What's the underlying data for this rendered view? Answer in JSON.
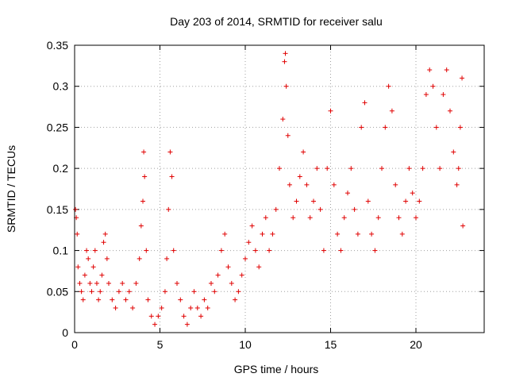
{
  "chart_data": {
    "type": "scatter",
    "title": "Day 203 of 2014, SRMTID for receiver salu",
    "xlabel": "GPS time / hours",
    "ylabel": "SRMTID / TECUs",
    "xlim": [
      0,
      24
    ],
    "ylim": [
      0,
      0.35
    ],
    "x_ticks": [
      0,
      5,
      10,
      15,
      20
    ],
    "x_tick_labels": [
      "0",
      "5",
      "10",
      "15",
      "20"
    ],
    "y_ticks": [
      0,
      0.05,
      0.1,
      0.15,
      0.2,
      0.25,
      0.3,
      0.35
    ],
    "y_tick_labels": [
      "0",
      "0.05",
      "0.1",
      "0.15",
      "0.2",
      "0.25",
      "0.3",
      "0.35"
    ],
    "grid": true,
    "marker": "+",
    "marker_color": "#e00000",
    "series": [
      {
        "name": "SRMTID",
        "points": [
          [
            0.05,
            0.15
          ],
          [
            0.1,
            0.14
          ],
          [
            0.15,
            0.12
          ],
          [
            0.2,
            0.08
          ],
          [
            0.3,
            0.06
          ],
          [
            0.4,
            0.05
          ],
          [
            0.5,
            0.04
          ],
          [
            0.6,
            0.07
          ],
          [
            0.7,
            0.1
          ],
          [
            0.8,
            0.09
          ],
          [
            0.9,
            0.06
          ],
          [
            1.0,
            0.05
          ],
          [
            1.1,
            0.08
          ],
          [
            1.2,
            0.1
          ],
          [
            1.3,
            0.06
          ],
          [
            1.4,
            0.04
          ],
          [
            1.5,
            0.05
          ],
          [
            1.6,
            0.07
          ],
          [
            1.7,
            0.11
          ],
          [
            1.8,
            0.12
          ],
          [
            1.9,
            0.09
          ],
          [
            2.0,
            0.06
          ],
          [
            2.2,
            0.04
          ],
          [
            2.4,
            0.03
          ],
          [
            2.6,
            0.05
          ],
          [
            2.8,
            0.06
          ],
          [
            3.0,
            0.04
          ],
          [
            3.2,
            0.05
          ],
          [
            3.4,
            0.03
          ],
          [
            3.6,
            0.06
          ],
          [
            3.8,
            0.09
          ],
          [
            3.9,
            0.13
          ],
          [
            4.0,
            0.16
          ],
          [
            4.05,
            0.22
          ],
          [
            4.1,
            0.19
          ],
          [
            4.2,
            0.1
          ],
          [
            4.3,
            0.04
          ],
          [
            4.5,
            0.02
          ],
          [
            4.7,
            0.01
          ],
          [
            4.9,
            0.02
          ],
          [
            5.1,
            0.03
          ],
          [
            5.3,
            0.05
          ],
          [
            5.4,
            0.09
          ],
          [
            5.5,
            0.15
          ],
          [
            5.6,
            0.22
          ],
          [
            5.7,
            0.19
          ],
          [
            5.8,
            0.1
          ],
          [
            6.0,
            0.06
          ],
          [
            6.2,
            0.04
          ],
          [
            6.4,
            0.02
          ],
          [
            6.6,
            0.01
          ],
          [
            6.8,
            0.03
          ],
          [
            7.0,
            0.05
          ],
          [
            7.2,
            0.03
          ],
          [
            7.4,
            0.02
          ],
          [
            7.6,
            0.04
          ],
          [
            7.8,
            0.03
          ],
          [
            8.0,
            0.06
          ],
          [
            8.2,
            0.05
          ],
          [
            8.4,
            0.07
          ],
          [
            8.6,
            0.1
          ],
          [
            8.8,
            0.12
          ],
          [
            9.0,
            0.08
          ],
          [
            9.2,
            0.06
          ],
          [
            9.4,
            0.04
          ],
          [
            9.6,
            0.05
          ],
          [
            9.8,
            0.07
          ],
          [
            10.0,
            0.09
          ],
          [
            10.2,
            0.11
          ],
          [
            10.4,
            0.13
          ],
          [
            10.6,
            0.1
          ],
          [
            10.8,
            0.08
          ],
          [
            11.0,
            0.12
          ],
          [
            11.2,
            0.14
          ],
          [
            11.4,
            0.1
          ],
          [
            11.6,
            0.12
          ],
          [
            11.8,
            0.15
          ],
          [
            12.0,
            0.2
          ],
          [
            12.2,
            0.26
          ],
          [
            12.3,
            0.33
          ],
          [
            12.35,
            0.34
          ],
          [
            12.4,
            0.3
          ],
          [
            12.5,
            0.24
          ],
          [
            12.6,
            0.18
          ],
          [
            12.8,
            0.14
          ],
          [
            13.0,
            0.16
          ],
          [
            13.2,
            0.19
          ],
          [
            13.4,
            0.22
          ],
          [
            13.6,
            0.18
          ],
          [
            13.8,
            0.14
          ],
          [
            14.0,
            0.16
          ],
          [
            14.2,
            0.2
          ],
          [
            14.4,
            0.15
          ],
          [
            14.6,
            0.1
          ],
          [
            14.8,
            0.2
          ],
          [
            15.0,
            0.27
          ],
          [
            15.2,
            0.18
          ],
          [
            15.4,
            0.12
          ],
          [
            15.6,
            0.1
          ],
          [
            15.8,
            0.14
          ],
          [
            16.0,
            0.17
          ],
          [
            16.2,
            0.2
          ],
          [
            16.4,
            0.15
          ],
          [
            16.6,
            0.12
          ],
          [
            16.8,
            0.25
          ],
          [
            17.0,
            0.28
          ],
          [
            17.2,
            0.16
          ],
          [
            17.4,
            0.12
          ],
          [
            17.6,
            0.1
          ],
          [
            17.8,
            0.14
          ],
          [
            18.0,
            0.2
          ],
          [
            18.2,
            0.25
          ],
          [
            18.4,
            0.3
          ],
          [
            18.6,
            0.27
          ],
          [
            18.8,
            0.18
          ],
          [
            19.0,
            0.14
          ],
          [
            19.2,
            0.12
          ],
          [
            19.4,
            0.16
          ],
          [
            19.6,
            0.2
          ],
          [
            19.8,
            0.17
          ],
          [
            20.0,
            0.14
          ],
          [
            20.2,
            0.16
          ],
          [
            20.4,
            0.2
          ],
          [
            20.6,
            0.29
          ],
          [
            20.8,
            0.32
          ],
          [
            21.0,
            0.3
          ],
          [
            21.2,
            0.25
          ],
          [
            21.4,
            0.2
          ],
          [
            21.6,
            0.29
          ],
          [
            21.8,
            0.32
          ],
          [
            22.0,
            0.27
          ],
          [
            22.2,
            0.22
          ],
          [
            22.4,
            0.18
          ],
          [
            22.5,
            0.2
          ],
          [
            22.6,
            0.25
          ],
          [
            22.7,
            0.31
          ],
          [
            22.75,
            0.13
          ]
        ]
      }
    ]
  }
}
